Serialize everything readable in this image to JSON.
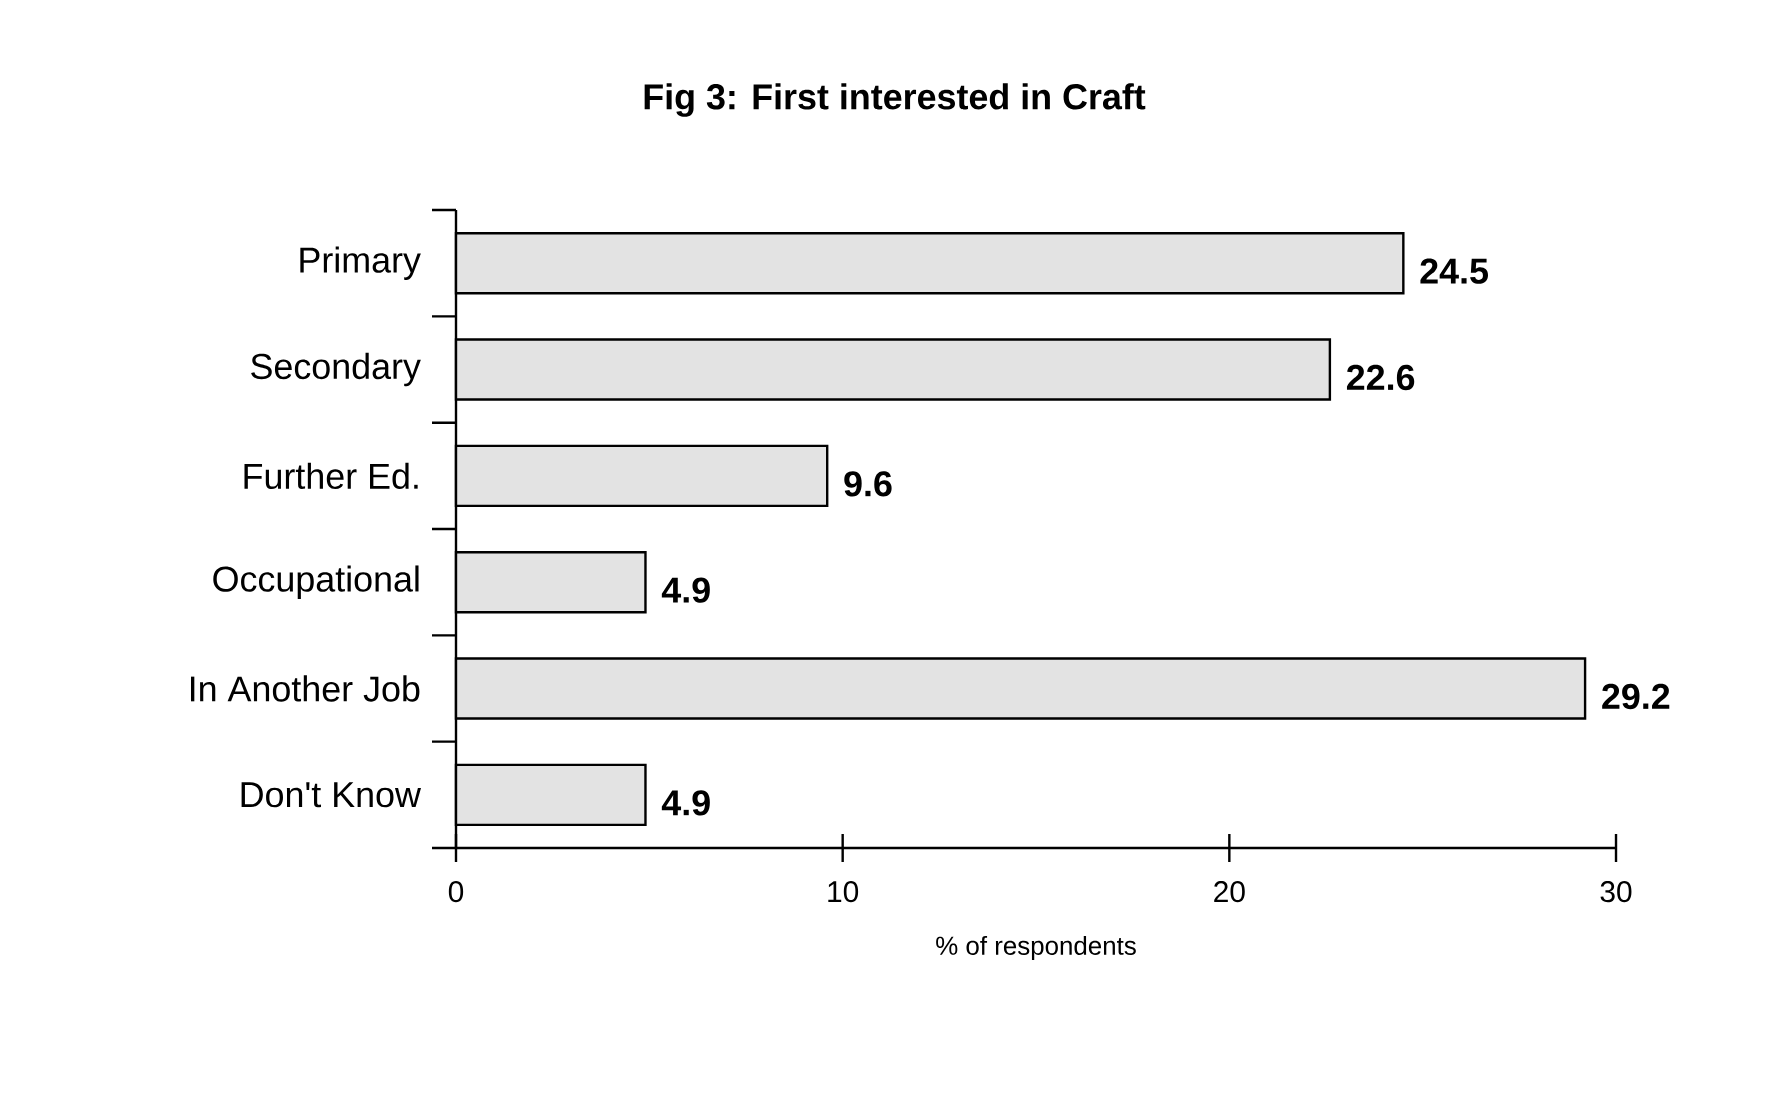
{
  "chart_data": {
    "type": "bar",
    "orientation": "horizontal",
    "title": "Fig 3:  First interested in Craft",
    "xlabel": "% of respondents",
    "categories": [
      "Primary",
      "Secondary",
      "Further Ed.",
      "Occupational",
      "In Another Job",
      "Don't Know"
    ],
    "values": [
      24.5,
      22.6,
      9.6,
      4.9,
      29.2,
      4.9
    ],
    "color": "#e3e3e3",
    "data_labels": true,
    "xlim": [
      0,
      30
    ],
    "xticks": [
      0,
      10,
      20,
      30
    ],
    "grid": false
  }
}
